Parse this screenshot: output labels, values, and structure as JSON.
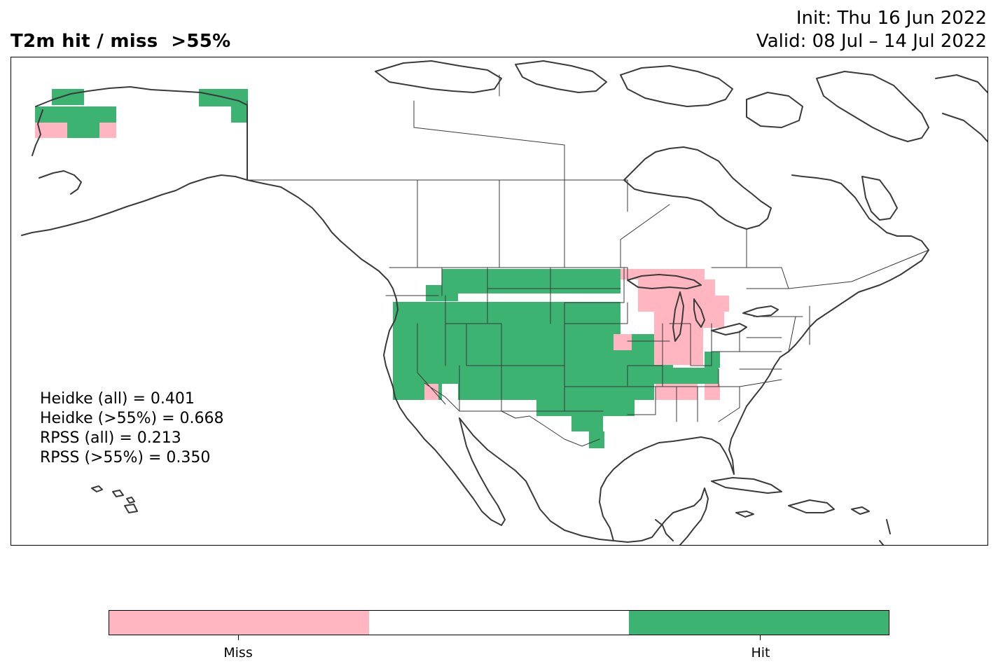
{
  "title": {
    "left": "T2m hit / miss  >55%",
    "init": "Init: Thu 16 Jun 2022",
    "valid": "Valid: 08 Jul – 14 Jul 2022"
  },
  "colors": {
    "hit": "#3cb371",
    "miss": "#ffb6c1",
    "none": "#ffffff",
    "coast": "#3a3a3a",
    "border": "#3a3a3a"
  },
  "scores": [
    "Heidke (all) = 0.401",
    "Heidke (>55%) = 0.668",
    "RPSS (all) = 0.213",
    "RPSS (>55%) = 0.350"
  ],
  "legend": {
    "segments": [
      {
        "key": "miss",
        "label": "Miss"
      },
      {
        "key": "none",
        "label": ""
      },
      {
        "key": "hit",
        "label": "Hit"
      }
    ]
  },
  "map": {
    "region": "North America",
    "grid_categories": [
      "Miss",
      "Hit"
    ]
  }
}
